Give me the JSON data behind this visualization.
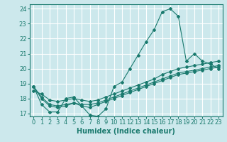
{
  "xlabel": "Humidex (Indice chaleur)",
  "background_color": "#cce8ec",
  "grid_color": "#ffffff",
  "line_color": "#1a7a6e",
  "xlim": [
    -0.5,
    23.5
  ],
  "ylim": [
    16.8,
    24.3
  ],
  "yticks": [
    17,
    18,
    19,
    20,
    21,
    22,
    23,
    24
  ],
  "xticks": [
    0,
    1,
    2,
    3,
    4,
    5,
    6,
    7,
    8,
    9,
    10,
    11,
    12,
    13,
    14,
    15,
    16,
    17,
    18,
    19,
    20,
    21,
    22,
    23
  ],
  "series": [
    [
      18.8,
      17.6,
      17.1,
      17.1,
      18.0,
      18.1,
      17.5,
      16.9,
      16.8,
      17.3,
      18.8,
      19.1,
      20.0,
      20.9,
      21.8,
      22.6,
      23.8,
      24.0,
      23.5,
      20.5,
      21.0,
      20.5,
      20.3,
      20.0
    ],
    [
      18.8,
      18.1,
      17.6,
      17.5,
      17.6,
      17.7,
      17.6,
      17.6,
      17.7,
      17.9,
      18.1,
      18.3,
      18.5,
      18.7,
      18.9,
      19.1,
      19.3,
      19.5,
      19.7,
      19.8,
      19.9,
      20.0,
      20.1,
      20.2
    ],
    [
      18.8,
      18.0,
      17.5,
      17.4,
      17.5,
      17.7,
      17.5,
      17.4,
      17.6,
      17.8,
      18.0,
      18.2,
      18.4,
      18.6,
      18.8,
      19.0,
      19.2,
      19.4,
      19.6,
      19.7,
      19.8,
      19.9,
      20.0,
      20.1
    ],
    [
      18.5,
      18.3,
      17.9,
      17.8,
      17.9,
      18.0,
      17.9,
      17.8,
      17.9,
      18.1,
      18.3,
      18.5,
      18.7,
      18.9,
      19.1,
      19.3,
      19.6,
      19.8,
      20.0,
      20.1,
      20.2,
      20.3,
      20.4,
      20.5
    ]
  ],
  "marker": "D",
  "markersize": 2.0,
  "linewidth": 0.8,
  "fontsize_ticks": 6,
  "fontsize_label": 7
}
